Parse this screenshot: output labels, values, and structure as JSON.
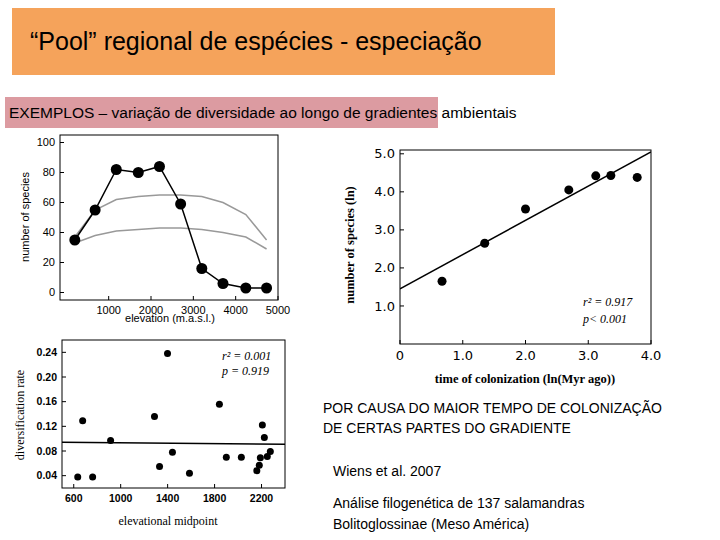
{
  "title": "“Pool” regional de espécies - especiação",
  "subtitle": "EXEMPLOS – variação de diversidade ao longo de gradientes ambientais",
  "caption": [
    "POR CAUSA DO MAIOR TEMPO DE COLONIZAÇÃO",
    "DE CERTAS PARTES DO GRADIENTE"
  ],
  "source": "Wiens et al. 2007",
  "study": [
    "Análise filogenética de 137 salamandras",
    "Bolitoglossinae (Meso América)"
  ],
  "chart_data": [
    {
      "type": "line",
      "x_label": "elevation (m.a.s.l.)",
      "y_label": "number of species",
      "x": [
        200,
        680,
        1180,
        1700,
        2200,
        2700,
        3200,
        3700,
        4240,
        4730
      ],
      "series": [
        {
          "color": "#999999",
          "values": [
            37,
            55,
            62,
            64,
            65,
            65,
            64,
            60,
            52,
            35
          ]
        },
        {
          "color": "#999999",
          "values": [
            33,
            38,
            41,
            42,
            43,
            43,
            42,
            40,
            37,
            29
          ]
        },
        {
          "color": "#000000",
          "marker": "circle",
          "values": [
            35,
            55,
            82,
            80,
            84,
            59,
            16,
            6,
            3,
            3
          ]
        }
      ],
      "xlim": [
        -150,
        5000
      ],
      "xticks": [
        1000,
        2000,
        3000,
        4000,
        5000
      ],
      "ylim": [
        -5,
        105
      ],
      "yticks": [
        0,
        20,
        40,
        60,
        80,
        100
      ],
      "grid": false
    },
    {
      "type": "scatter",
      "x_label": "time of colonization (ln(Myr ago))",
      "y_label": "number of species (ln)",
      "annotations": [
        "r² = 0.917",
        "p< 0.001"
      ],
      "series": [
        {
          "type": "scatter",
          "color": "#000000",
          "marker": "circle",
          "x": [
            0.67,
            1.35,
            2.0,
            2.69,
            3.12,
            3.36,
            3.78
          ],
          "values": [
            1.65,
            2.65,
            3.55,
            4.05,
            4.42,
            4.43,
            4.38
          ]
        },
        {
          "type": "line",
          "color": "#000000",
          "x": [
            0,
            4.0
          ],
          "values": [
            1.45,
            5.05
          ]
        }
      ],
      "xlim": [
        0,
        4.0
      ],
      "xticks": [
        0,
        {
          "value": 1,
          "label": "1.0"
        },
        {
          "value": 2,
          "label": "2.0"
        },
        {
          "value": 3,
          "label": "3.0"
        },
        {
          "value": 4,
          "label": "4.0"
        }
      ],
      "ylim": [
        0,
        5.1
      ],
      "yticks": [
        {
          "value": 1,
          "label": "1.0"
        },
        {
          "value": 2,
          "label": "2.0"
        },
        {
          "value": 3,
          "label": "3.0"
        },
        {
          "value": 4,
          "label": "4.0"
        },
        {
          "value": 5,
          "label": "5.0"
        }
      ],
      "grid": false
    },
    {
      "type": "scatter",
      "x_label": "elevational midpoint",
      "y_label": "diversification rate",
      "annotations": [
        "r² = 0.001",
        "p = 0.919"
      ],
      "series": [
        {
          "type": "scatter",
          "color": "#000000",
          "marker": "circle",
          "x": [
            634,
            676,
            761,
            914,
            1288,
            1331,
            1399,
            1441,
            1586,
            1841,
            1900,
            2028,
            2160,
            2181,
            2190,
            2207,
            2224,
            2249,
            2275
          ],
          "values": [
            0.038,
            0.129,
            0.038,
            0.097,
            0.136,
            0.055,
            0.238,
            0.078,
            0.044,
            0.156,
            0.07,
            0.07,
            0.048,
            0.057,
            0.069,
            0.122,
            0.102,
            0.071,
            0.079
          ]
        },
        {
          "type": "line",
          "color": "#000000",
          "x": [
            500,
            2400
          ],
          "values": [
            0.094,
            0.091
          ]
        }
      ],
      "xlim": [
        500,
        2400
      ],
      "xticks": [
        600,
        1000,
        1400,
        1800,
        2200
      ],
      "ylim": [
        0.02,
        0.26
      ],
      "yticks": [
        0.04,
        0.08,
        0.12,
        0.16,
        {
          "value": 0.2,
          "label": "0.20"
        },
        0.24
      ],
      "grid": false
    }
  ]
}
